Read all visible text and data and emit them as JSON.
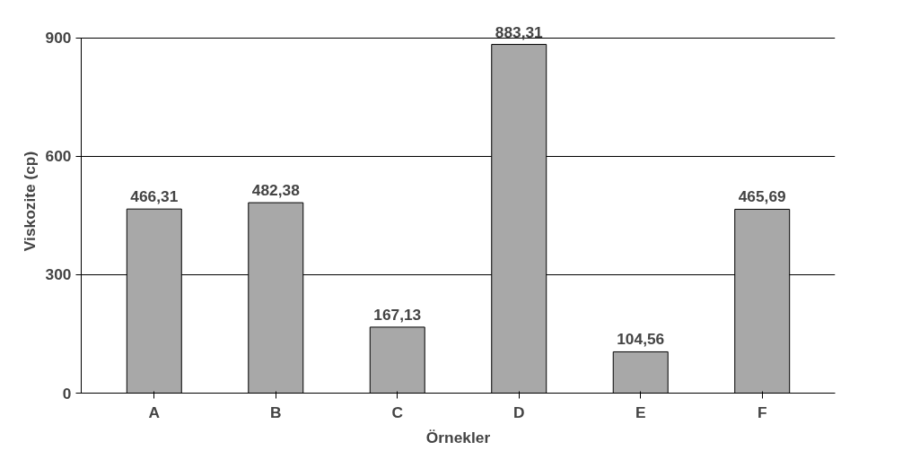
{
  "chart_data": {
    "type": "bar",
    "xlabel": "Örnekler",
    "ylabel": "Viskozite (cp)",
    "categories": [
      "A",
      "B",
      "C",
      "D",
      "E",
      "F"
    ],
    "values": [
      466.31,
      482.38,
      167.13,
      883.31,
      104.56,
      465.69
    ],
    "value_labels": [
      "466,31",
      "482,38",
      "167,13",
      "883,31",
      "104,56",
      "465,69"
    ],
    "color": "#a8a8a8",
    "ylim": [
      0,
      900
    ],
    "yticks": [
      0,
      300,
      600,
      900
    ],
    "grid": "y"
  }
}
